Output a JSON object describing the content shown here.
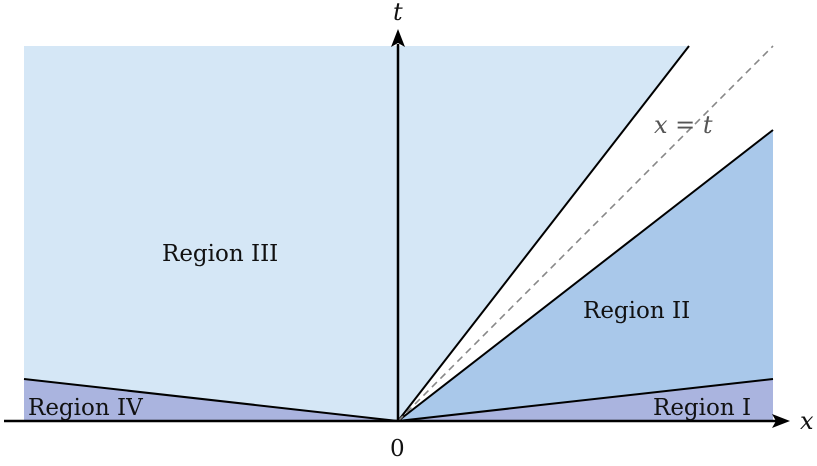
{
  "diagram": {
    "axes": {
      "x_label": "x",
      "t_label": "t",
      "origin_label": "0"
    },
    "light_line": {
      "label": "x = t",
      "style": "dashed"
    },
    "regions": [
      {
        "id": "I",
        "label": "Region I",
        "color": "#aab4df"
      },
      {
        "id": "II",
        "label": "Region II",
        "color": "#a9c8ea"
      },
      {
        "id": "III",
        "label": "Region III",
        "color": "#d5e7f6"
      },
      {
        "id": "IV",
        "label": "Region IV",
        "color": "#aab4df"
      }
    ],
    "colors": {
      "axis": "#000000",
      "boundary": "#000000",
      "dashed_line": "#888888",
      "white_wedge": "#ffffff"
    }
  }
}
